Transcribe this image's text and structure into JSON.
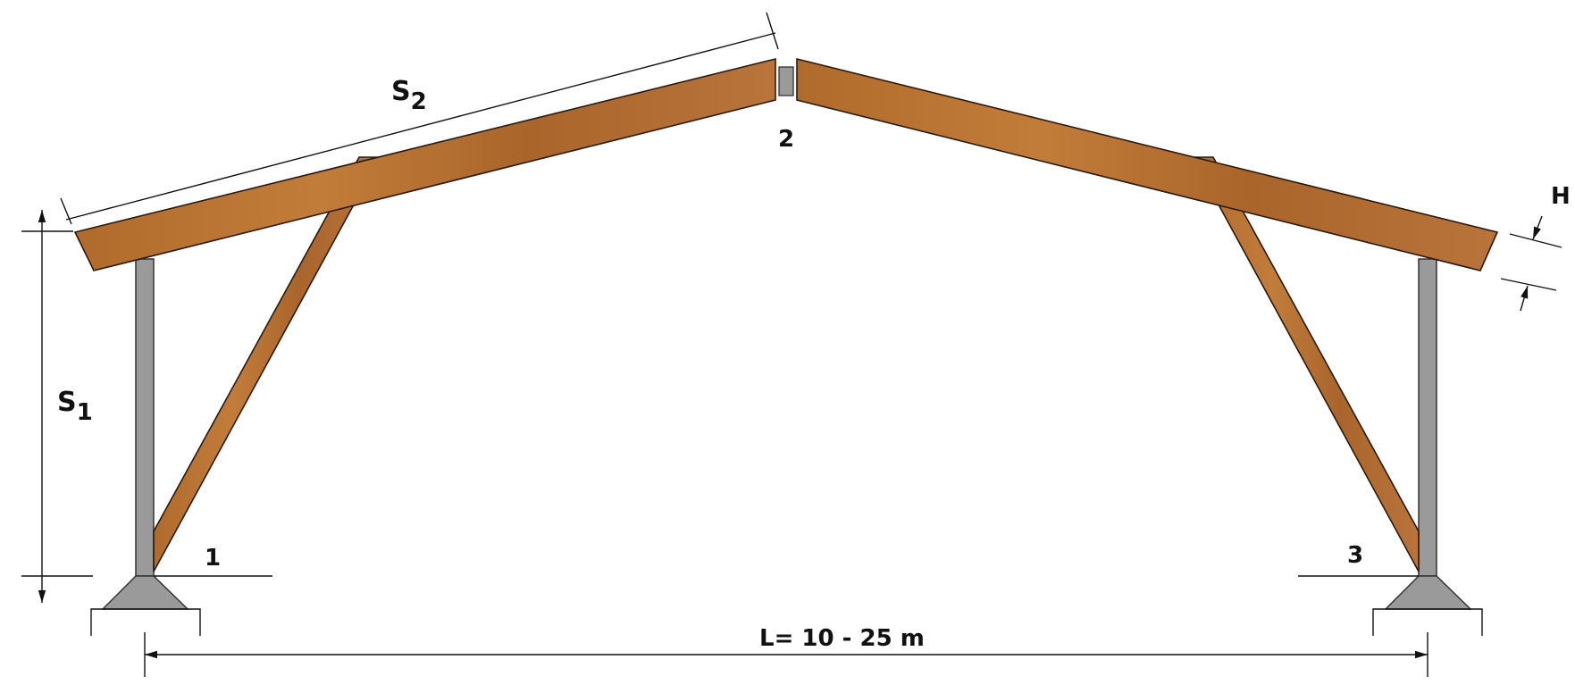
{
  "labels": {
    "s1": "S",
    "s1_sub": "1",
    "s2": "S",
    "s2_sub": "2",
    "h": "H",
    "node1": "1",
    "node2": "2",
    "node3": "3",
    "span": "L= 10 - 25 m"
  },
  "colors": {
    "timber": "#B9712F",
    "timber_edge": "#2a1a0c",
    "steel": "#9A9A9A",
    "steel_edge": "#333333",
    "line": "#111111"
  }
}
